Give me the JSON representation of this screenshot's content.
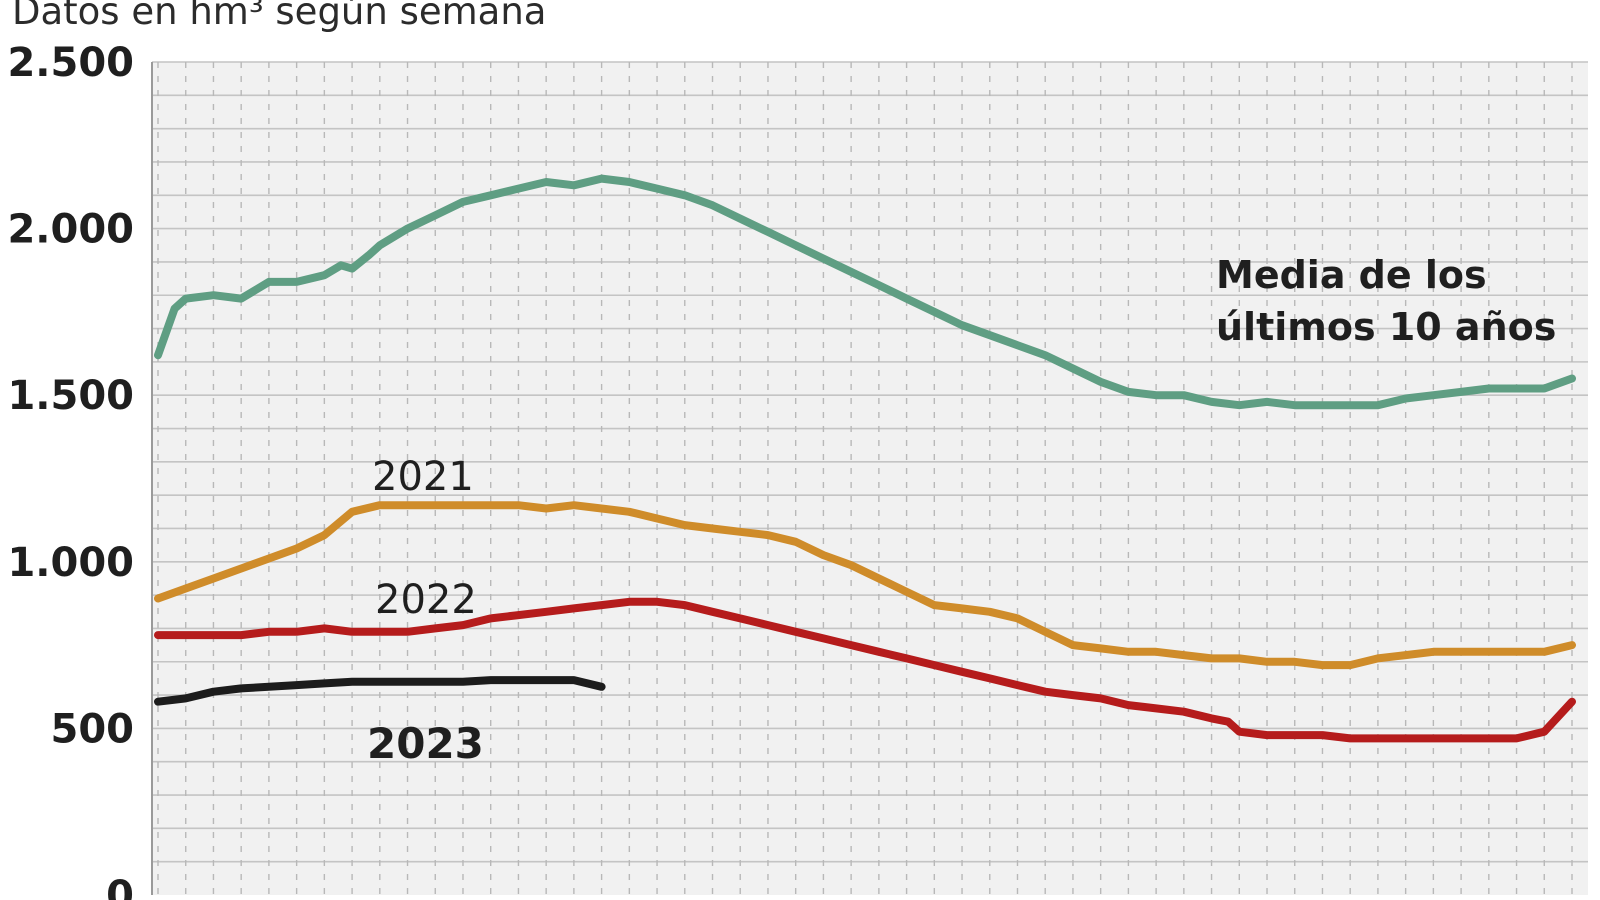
{
  "subtitle": "Datos en hm³ según semana",
  "chart_data": {
    "type": "line",
    "title": "",
    "subtitle": "Datos en hm³ según semana",
    "xlabel": "",
    "ylabel": "",
    "ylim": [
      0,
      2500
    ],
    "yticks": [
      0,
      500,
      1000,
      1500,
      2000,
      2500
    ],
    "ytick_labels": [
      "0",
      "500",
      "1.000",
      "1.500",
      "2.000",
      "2.500"
    ],
    "xlim": [
      1,
      52
    ],
    "grid": true,
    "series": [
      {
        "name": "Media de los últimos 10 años",
        "color": "#5f9e83",
        "x": [
          1,
          1.6,
          2,
          3,
          4,
          5,
          6,
          7,
          7.6,
          8,
          8.6,
          9,
          10,
          11,
          12,
          13,
          14,
          15,
          16,
          17,
          18,
          19,
          20,
          21,
          22,
          23,
          24,
          25,
          26,
          27,
          28,
          29,
          30,
          31,
          32,
          33,
          34,
          35,
          36,
          37,
          38,
          39,
          40,
          41,
          42,
          43,
          44,
          45,
          46,
          47,
          48,
          49,
          50,
          51,
          52
        ],
        "values": [
          1620,
          1760,
          1790,
          1800,
          1790,
          1840,
          1840,
          1860,
          1890,
          1880,
          1920,
          1950,
          2000,
          2040,
          2080,
          2100,
          2120,
          2140,
          2130,
          2150,
          2140,
          2120,
          2100,
          2070,
          2030,
          1990,
          1950,
          1910,
          1870,
          1830,
          1790,
          1750,
          1710,
          1680,
          1650,
          1620,
          1580,
          1540,
          1510,
          1500,
          1500,
          1480,
          1470,
          1480,
          1470,
          1470,
          1470,
          1470,
          1490,
          1500,
          1510,
          1520,
          1520,
          1520,
          1550
        ]
      },
      {
        "name": "2021",
        "color": "#cf8c2a",
        "x": [
          1,
          2,
          3,
          4,
          5,
          6,
          7,
          8,
          9,
          10,
          11,
          12,
          13,
          14,
          15,
          16,
          17,
          18,
          19,
          20,
          21,
          22,
          23,
          24,
          25,
          26,
          27,
          28,
          29,
          30,
          31,
          32,
          33,
          34,
          35,
          36,
          37,
          38,
          39,
          40,
          41,
          42,
          43,
          44,
          45,
          46,
          47,
          48,
          49,
          50,
          51,
          52
        ],
        "values": [
          890,
          920,
          950,
          980,
          1010,
          1040,
          1080,
          1150,
          1170,
          1170,
          1170,
          1170,
          1170,
          1170,
          1160,
          1170,
          1160,
          1150,
          1130,
          1110,
          1100,
          1090,
          1080,
          1060,
          1020,
          990,
          950,
          910,
          870,
          860,
          850,
          830,
          790,
          750,
          740,
          730,
          730,
          720,
          710,
          710,
          700,
          700,
          690,
          690,
          710,
          720,
          730,
          730,
          730,
          730,
          730,
          750
        ]
      },
      {
        "name": "2022",
        "color": "#b51c1c",
        "x": [
          1,
          2,
          3,
          4,
          5,
          6,
          7,
          8,
          9,
          10,
          11,
          12,
          13,
          14,
          15,
          16,
          17,
          18,
          19,
          20,
          21,
          22,
          23,
          24,
          25,
          26,
          27,
          28,
          29,
          30,
          31,
          32,
          33,
          34,
          35,
          36,
          37,
          38,
          39,
          39.6,
          40,
          41,
          42,
          43,
          44,
          45,
          46,
          47,
          48,
          49,
          50,
          51,
          52
        ],
        "values": [
          780,
          780,
          780,
          780,
          790,
          790,
          800,
          790,
          790,
          790,
          800,
          810,
          830,
          840,
          850,
          860,
          870,
          880,
          880,
          870,
          850,
          830,
          810,
          790,
          770,
          750,
          730,
          710,
          690,
          670,
          650,
          630,
          610,
          600,
          590,
          570,
          560,
          550,
          530,
          520,
          490,
          480,
          480,
          480,
          470,
          470,
          470,
          470,
          470,
          470,
          470,
          490,
          580
        ]
      },
      {
        "name": "2023",
        "color": "#1c1c1c",
        "x": [
          1,
          2,
          3,
          4,
          5,
          6,
          7,
          8,
          9,
          10,
          11,
          12,
          13,
          14,
          15,
          16,
          17
        ],
        "values": [
          580,
          590,
          610,
          620,
          625,
          630,
          635,
          640,
          640,
          640,
          640,
          640,
          645,
          645,
          645,
          645,
          625
        ]
      }
    ],
    "annotations": [
      {
        "text": "Media de los",
        "series": "Media de los últimos 10 años"
      },
      {
        "text": "últimos 10 años",
        "series": "Media de los últimos 10 años"
      },
      {
        "text": "2021",
        "series": "2021"
      },
      {
        "text": "2022",
        "series": "2022"
      },
      {
        "text": "2023",
        "series": "2023"
      }
    ]
  }
}
